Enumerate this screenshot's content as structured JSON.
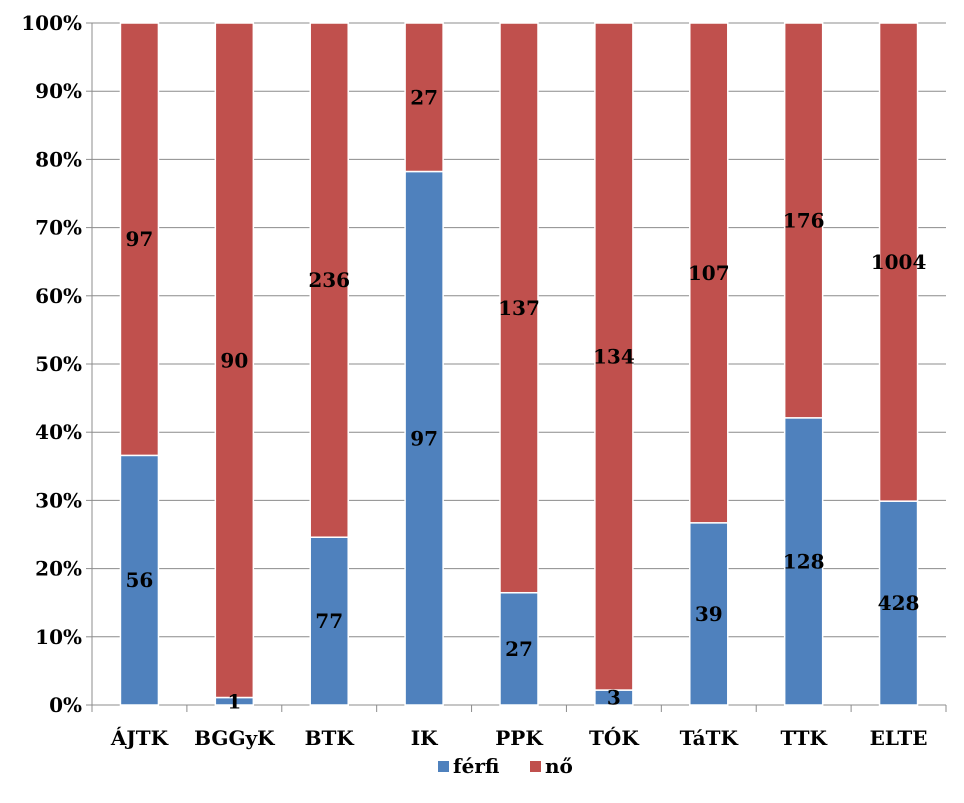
{
  "chart_data": {
    "type": "bar",
    "stacked": "percent",
    "categories": [
      "ÁJTK",
      "BGGyK",
      "BTK",
      "IK",
      "PPK",
      "TÓK",
      "TáTK",
      "TTK",
      "ELTE"
    ],
    "series": [
      {
        "name": "férfi",
        "color": "#4F81BD",
        "values": [
          56,
          1,
          77,
          97,
          27,
          3,
          39,
          128,
          428
        ]
      },
      {
        "name": "nő",
        "color": "#C0504D",
        "values": [
          97,
          90,
          236,
          27,
          137,
          134,
          107,
          176,
          1004
        ]
      }
    ],
    "y_ticks": [
      "0%",
      "10%",
      "20%",
      "30%",
      "40%",
      "50%",
      "60%",
      "70%",
      "80%",
      "90%",
      "100%"
    ],
    "ylim": [
      0,
      100
    ],
    "grid": true,
    "legend_position": "bottom-center",
    "title": "",
    "xlabel": "",
    "ylabel": ""
  }
}
